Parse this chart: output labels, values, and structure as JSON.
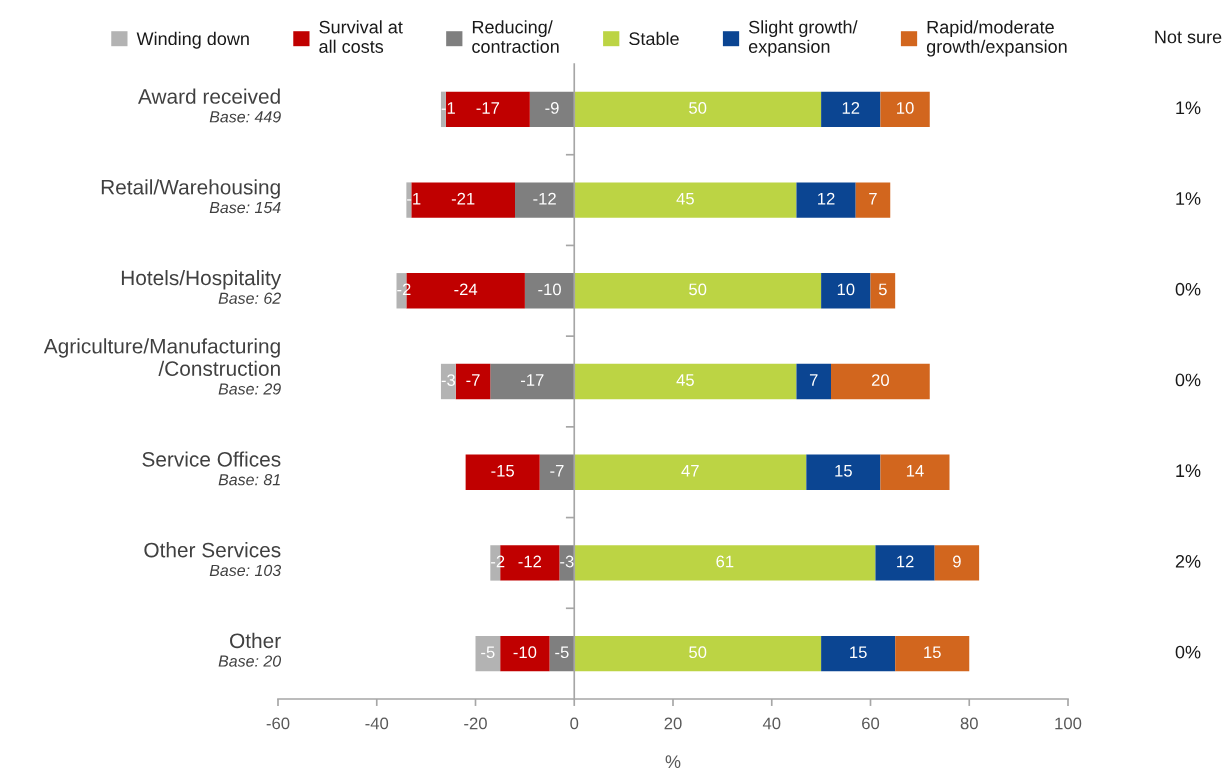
{
  "chart_data": [
    {
      "type": "bar",
      "orientation": "horizontal",
      "stacked": true,
      "data_labels": true,
      "legend": "top",
      "categories": [
        "Award received\nBase: 449",
        "Retail/Warehousing\nBase: 154",
        "Hotels/Hospitality\nBase: 62",
        "Agriculture/Manufacturing\n/Construction\nBase: 29",
        "Service Offices\nBase: 81",
        "Other Services\nBase: 103",
        "Other\nBase: 20"
      ],
      "xlabel": "%",
      "xlim": [
        -60,
        100
      ],
      "xticks": [
        -60,
        -40,
        -20,
        0,
        20,
        40,
        60,
        80,
        100
      ],
      "series": [
        {
          "name": "Reducing/\ncontraction",
          "color": "#7f7f7f",
          "values": [
            -9,
            -12,
            -10,
            -17,
            -7,
            -3,
            -5
          ]
        },
        {
          "name": "Survival at\nall costs",
          "color": "#c00000",
          "values": [
            -17,
            -21,
            -24,
            -7,
            -15,
            -12,
            -10
          ]
        },
        {
          "name": "Winding down",
          "color": "#b3b3b3",
          "values": [
            -1,
            -1,
            -2,
            -3,
            null,
            -2,
            -5
          ]
        },
        {
          "name": "Stable",
          "color": "#bcd444",
          "values": [
            50,
            45,
            50,
            45,
            47,
            61,
            50
          ]
        },
        {
          "name": "Slight growth/\nexpansion",
          "color": "#0b4592",
          "values": [
            12,
            12,
            10,
            7,
            15,
            12,
            15
          ]
        },
        {
          "name": "Rapid/moderate\ngrowth/expansion",
          "color": "#d2661e",
          "values": [
            10,
            7,
            5,
            20,
            14,
            9,
            15
          ]
        }
      ]
    },
    {
      "type": "other",
      "title": "Not sure",
      "annotations": [
        "1%",
        "1%",
        "0%",
        "0%",
        "1%",
        "2%",
        "0%"
      ]
    }
  ]
}
